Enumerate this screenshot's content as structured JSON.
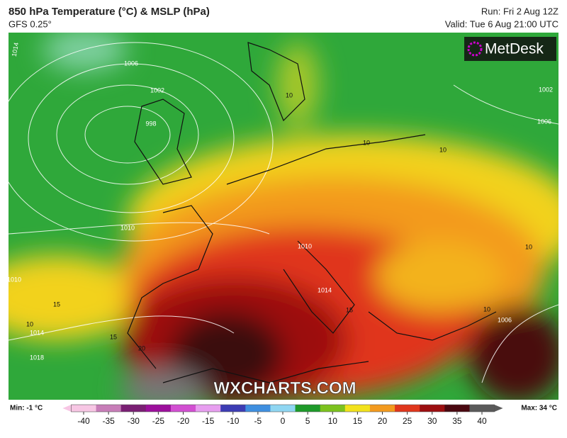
{
  "header": {
    "title": "850 hPa Temperature (°C) & MSLP (hPa)",
    "model": "GFS 0.25°",
    "run": "Run: Fri 2 Aug 12Z",
    "valid": "Valid: Tue 6 Aug 21:00 UTC"
  },
  "logo": "MetDesk",
  "watermark": "WXCHARTS.COM",
  "legend": {
    "min_label": "Min: -1 °C",
    "max_label": "Max: 34 °C",
    "ticks": [
      -40,
      -35,
      -30,
      -25,
      -20,
      -15,
      -10,
      -5,
      0,
      5,
      10,
      15,
      20,
      25,
      30,
      35,
      40
    ],
    "colors": [
      "#f7c6e4",
      "#c77db8",
      "#7a1f74",
      "#9c0f9c",
      "#d24fd2",
      "#e79ef0",
      "#3c3cb4",
      "#3f8fe0",
      "#8fd6f2",
      "#1e9a2a",
      "#7cc21e",
      "#f2e21c",
      "#f39a1e",
      "#e0361c",
      "#9c0e10",
      "#4a0810",
      "#5a5a5a"
    ]
  },
  "map": {
    "isobar_labels": [
      "1014",
      "1006",
      "1002",
      "998",
      "1010",
      "1010",
      "1014",
      "1018",
      "1006",
      "1002",
      "1006",
      "1014",
      "1010"
    ],
    "temperature_labels": [
      "10",
      "10",
      "10",
      "10",
      "10",
      "15",
      "15",
      "15",
      "20",
      "10"
    ]
  }
}
